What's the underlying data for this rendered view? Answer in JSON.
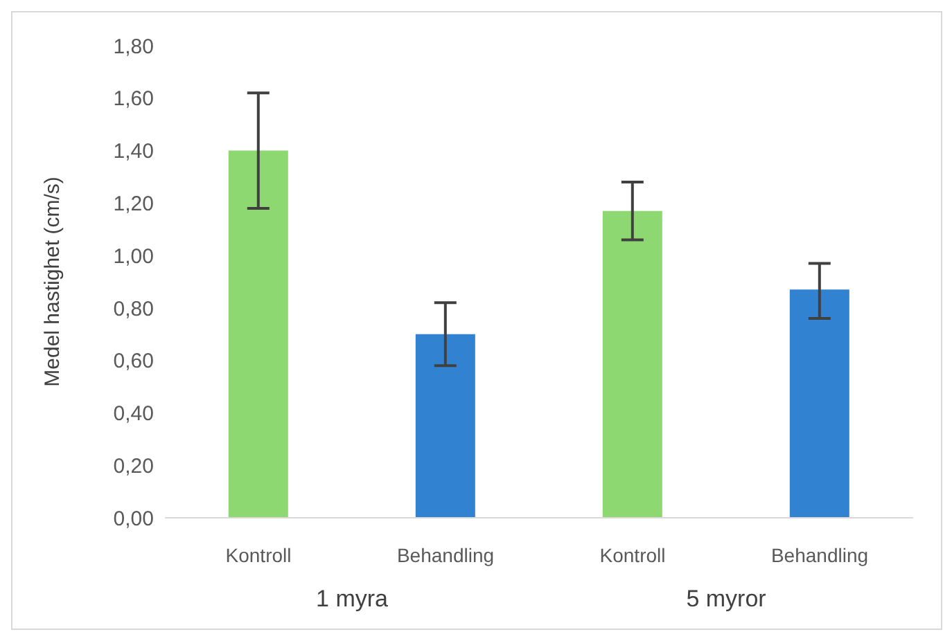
{
  "chart_data": {
    "type": "bar",
    "ylabel": "Medel hastighet (cm/s)",
    "categories": [
      "Kontroll",
      "Behandling",
      "Kontroll",
      "Behandling"
    ],
    "values": [
      1.4,
      0.7,
      1.17,
      0.87
    ],
    "colors": [
      "#8ed872",
      "#3282d2",
      "#8ed872",
      "#3282d2"
    ],
    "errors": [
      0.22,
      0.12,
      0.11,
      [
        0.76,
        0.97
      ]
    ],
    "ylim": [
      0,
      1.8
    ],
    "yticks": [
      {
        "value": 0,
        "label": "0,00"
      },
      {
        "value": 0.2,
        "label": "0,20"
      },
      {
        "value": 0.4,
        "label": "0,40"
      },
      {
        "value": 0.6,
        "label": "0,60"
      },
      {
        "value": 0.8,
        "label": "0,80"
      },
      {
        "value": 1.0,
        "label": "1,00"
      },
      {
        "value": 1.2,
        "label": "1,20"
      },
      {
        "value": 1.4,
        "label": "1,40"
      },
      {
        "value": 1.6,
        "label": "1,60"
      },
      {
        "value": 1.8,
        "label": "1,80"
      }
    ],
    "annotations": [
      "1 myra",
      "5 myror"
    ],
    "grid": false,
    "legend": false
  }
}
